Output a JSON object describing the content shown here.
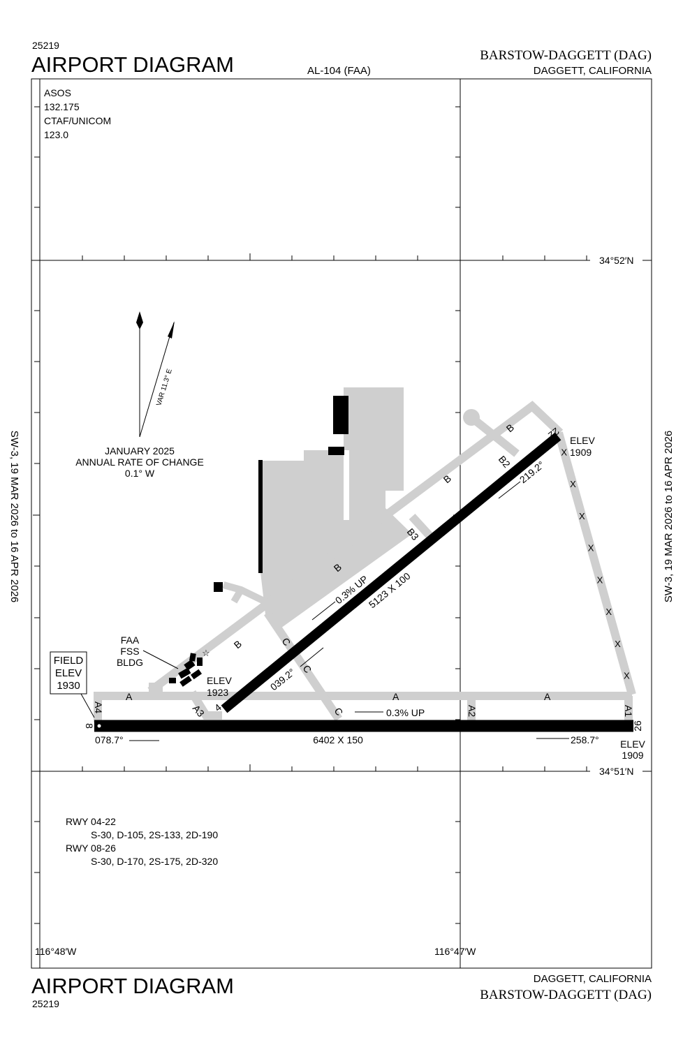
{
  "header": {
    "chart_number": "25219",
    "title": "AIRPORT DIAGRAM",
    "procedure_id": "AL-104 (FAA)",
    "airport_name": "BARSTOW-DAGGETT (DAG)",
    "location": "DAGGETT, CALIFORNIA"
  },
  "footer": {
    "chart_number": "25219",
    "title": "AIRPORT DIAGRAM",
    "airport_name": "BARSTOW-DAGGETT (DAG)",
    "location": "DAGGETT, CALIFORNIA"
  },
  "effective_dates": "SW-3,  19 MAR 2026  to  16 APR 2026",
  "frequencies": [
    "ASOS",
    "132.175",
    "CTAF/UNICOM",
    "123.0"
  ],
  "coordinates": {
    "lat_north": "34°52′N",
    "lat_south": "34°51′N",
    "lon_west": "116°48′W",
    "lon_east": "116°47′W"
  },
  "magnetic": {
    "variation": "VAR 11.3° E",
    "rate_title": "JANUARY 2025",
    "rate_label": "ANNUAL RATE OF CHANGE",
    "rate_value": "0.1° W"
  },
  "field_elev": [
    "FIELD",
    "ELEV",
    "1930"
  ],
  "runways": {
    "r0826": {
      "end_west": "8",
      "end_east": "26",
      "dimensions": "6402 X 150",
      "heading_west": "078.7°",
      "heading_east": "258.7°",
      "slope": "0.3% UP",
      "elev_east_label": "ELEV",
      "elev_east": "1909"
    },
    "r0422": {
      "end_sw": "4",
      "end_ne": "22",
      "dimensions": "5123 X 100",
      "heading_sw": "039.2°",
      "heading_ne": "219.2°",
      "slope": "0.3% UP",
      "elev_sw_label": "ELEV",
      "elev_sw": "1923",
      "elev_ne_label": "ELEV",
      "elev_ne": "1909"
    }
  },
  "taxiways": {
    "A": "A",
    "A1": "A1",
    "A2": "A2",
    "A3": "A3",
    "A4": "A4",
    "B": "B",
    "B2": "B2",
    "B3": "B3",
    "C": "C"
  },
  "buildings": [
    "FAA",
    "FSS",
    "BLDG"
  ],
  "closed_marker": "X",
  "strength": {
    "rwy1": "RWY 04-22",
    "rwy1_data": "S-30, D-105, 2S-133, 2D-190",
    "rwy2": "RWY 08-26",
    "rwy2_data": "S-30, D-170, 2S-175, 2D-320"
  }
}
